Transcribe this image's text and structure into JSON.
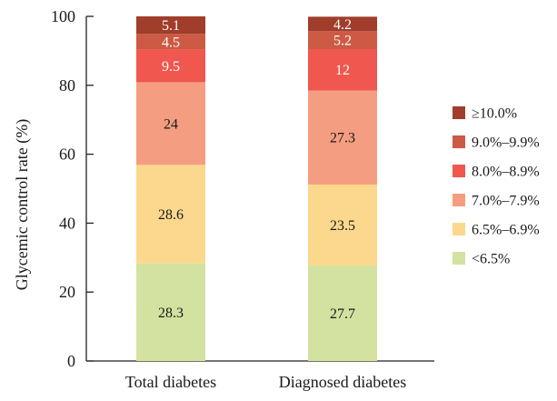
{
  "chart_data": {
    "type": "bar",
    "stacked": true,
    "categories": [
      "Total diabetes",
      "Diagnosed diabetes"
    ],
    "ylabel": "Glycemic control rate (%)",
    "xlabel": "",
    "ylim": [
      0,
      100
    ],
    "yticks": [
      0,
      20,
      40,
      60,
      80,
      100
    ],
    "legend_position": "right",
    "series": [
      {
        "name": "<6.5%",
        "color": "#d3e2a0",
        "label_color": "#1a1a1a",
        "values": [
          28.3,
          27.7
        ]
      },
      {
        "name": "6.5%–6.9%",
        "color": "#fbd88e",
        "label_color": "#1a1a1a",
        "values": [
          28.6,
          23.5
        ]
      },
      {
        "name": "7.0%–7.9%",
        "color": "#f59d80",
        "label_color": "#1a1a1a",
        "values": [
          24,
          27.3
        ]
      },
      {
        "name": "8.0%–8.9%",
        "color": "#ef574f",
        "label_color": "#ffffff",
        "values": [
          9.5,
          12
        ]
      },
      {
        "name": "9.0%–9.9%",
        "color": "#cd5a44",
        "label_color": "#ffffff",
        "values": [
          4.5,
          5.2
        ]
      },
      {
        "name": "≥10.0%",
        "color": "#a13d2b",
        "label_color": "#ffffff",
        "values": [
          5.1,
          4.2
        ]
      }
    ]
  }
}
